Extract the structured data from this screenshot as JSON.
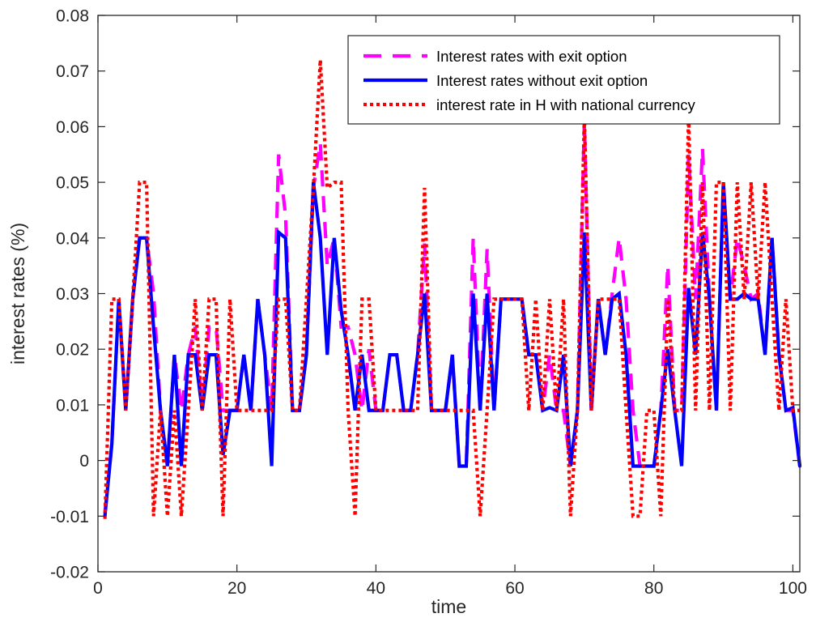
{
  "chart_data": {
    "type": "line",
    "title": "",
    "xlabel": "time",
    "ylabel": "interest rates (%)",
    "xlim": [
      0,
      101
    ],
    "ylim": [
      -0.02,
      0.08
    ],
    "xticks": [
      0,
      20,
      40,
      60,
      80,
      100
    ],
    "xtick_labels": [
      "0",
      "20",
      "40",
      "60",
      "80",
      "100"
    ],
    "yticks": [
      -0.02,
      -0.01,
      0,
      0.01,
      0.02,
      0.03,
      0.04,
      0.05,
      0.06,
      0.07,
      0.08
    ],
    "ytick_labels": [
      "-0.02",
      "-0.01",
      "0",
      "0.01",
      "0.02",
      "0.03",
      "0.04",
      "0.05",
      "0.06",
      "0.07",
      "0.08"
    ],
    "grid": false,
    "legend_position": "top-right",
    "series": [
      {
        "name": "Interest rates with exit option",
        "color": "#ff00ff",
        "style": "dashed",
        "x": [
          1,
          2,
          3,
          4,
          5,
          6,
          7,
          8,
          9,
          10,
          11,
          12,
          13,
          14,
          15,
          16,
          17,
          18,
          19,
          20,
          21,
          22,
          23,
          24,
          25,
          26,
          27,
          28,
          29,
          30,
          31,
          32,
          33,
          34,
          35,
          36,
          37,
          38,
          39,
          40,
          41,
          42,
          43,
          44,
          45,
          46,
          47,
          48,
          49,
          50,
          51,
          52,
          53,
          54,
          55,
          56,
          57,
          58,
          59,
          60,
          61,
          62,
          63,
          64,
          65,
          66,
          67,
          68,
          69,
          70,
          71,
          72,
          73,
          74,
          75,
          76,
          77,
          78,
          79,
          80,
          81,
          82,
          83,
          84,
          85,
          86,
          87,
          88,
          89,
          90,
          91,
          92,
          93,
          94,
          95,
          96,
          97,
          98,
          99,
          100,
          101
        ],
        "y": [
          -0.0095,
          0.003,
          0.029,
          0.009,
          0.029,
          0.04,
          0.04,
          0.03,
          0.009,
          -0.001,
          0.019,
          0.009,
          0.019,
          0.024,
          0.009,
          0.024,
          0.024,
          0.009,
          0.009,
          0.009,
          0.019,
          0.009,
          0.029,
          0.019,
          0.009,
          0.055,
          0.044,
          0.009,
          0.009,
          0.019,
          0.049,
          0.057,
          0.035,
          0.04,
          0.024,
          0.024,
          0.019,
          0.009,
          0.02,
          0.009,
          0.009,
          0.019,
          0.019,
          0.009,
          0.009,
          0.019,
          0.039,
          0.009,
          0.009,
          0.009,
          0.019,
          -0.001,
          -0.001,
          0.04,
          0.009,
          0.038,
          0.009,
          0.029,
          0.029,
          0.029,
          0.029,
          0.019,
          0.019,
          0.009,
          0.019,
          0.009,
          0.009,
          -0.001,
          0.009,
          0.061,
          0.009,
          0.029,
          0.019,
          0.03,
          0.04,
          0.029,
          0.009,
          -0.001,
          -0.001,
          -0.001,
          0.009,
          0.035,
          0.009,
          0.009,
          0.055,
          0.029,
          0.056,
          0.029,
          0.009,
          0.05,
          0.029,
          0.04,
          0.035,
          0.029,
          0.03,
          0.019,
          0.04,
          0.019,
          0.009,
          0.009,
          -0.001
        ]
      },
      {
        "name": "Interest rates without exit option",
        "color": "#0000ff",
        "style": "solid",
        "x": [
          1,
          2,
          3,
          4,
          5,
          6,
          7,
          8,
          9,
          10,
          11,
          12,
          13,
          14,
          15,
          16,
          17,
          18,
          19,
          20,
          21,
          22,
          23,
          24,
          25,
          26,
          27,
          28,
          29,
          30,
          31,
          32,
          33,
          34,
          35,
          36,
          37,
          38,
          39,
          40,
          41,
          42,
          43,
          44,
          45,
          46,
          47,
          48,
          49,
          50,
          51,
          52,
          53,
          54,
          55,
          56,
          57,
          58,
          59,
          60,
          61,
          62,
          63,
          64,
          65,
          66,
          67,
          68,
          69,
          70,
          71,
          72,
          73,
          74,
          75,
          76,
          77,
          78,
          79,
          80,
          81,
          82,
          83,
          84,
          85,
          86,
          87,
          88,
          89,
          90,
          91,
          92,
          93,
          94,
          95,
          96,
          97,
          98,
          99,
          100,
          101
        ],
        "y": [
          -0.01,
          0.003,
          0.029,
          0.009,
          0.029,
          0.04,
          0.04,
          0.024,
          0.009,
          -0.001,
          0.019,
          -0.001,
          0.019,
          0.019,
          0.009,
          0.019,
          0.019,
          0.001,
          0.009,
          0.009,
          0.019,
          0.009,
          0.029,
          0.019,
          -0.001,
          0.041,
          0.04,
          0.009,
          0.009,
          0.019,
          0.05,
          0.04,
          0.019,
          0.04,
          0.027,
          0.019,
          0.009,
          0.019,
          0.009,
          0.009,
          0.009,
          0.019,
          0.019,
          0.009,
          0.009,
          0.019,
          0.03,
          0.009,
          0.009,
          0.009,
          0.019,
          -0.001,
          -0.001,
          0.03,
          0.009,
          0.03,
          0.009,
          0.029,
          0.029,
          0.029,
          0.029,
          0.019,
          0.019,
          0.009,
          0.0095,
          0.009,
          0.019,
          -0.001,
          0.009,
          0.041,
          0.009,
          0.029,
          0.019,
          0.029,
          0.03,
          0.019,
          -0.001,
          -0.001,
          -0.001,
          -0.001,
          0.009,
          0.02,
          0.009,
          -0.001,
          0.031,
          0.019,
          0.041,
          0.029,
          0.009,
          0.05,
          0.029,
          0.029,
          0.03,
          0.029,
          0.029,
          0.019,
          0.04,
          0.019,
          0.009,
          0.0095,
          -0.001
        ]
      },
      {
        "name": "interest rate in H with national currency",
        "color": "#ff0000",
        "style": "dotted",
        "x": [
          1,
          2,
          3,
          4,
          5,
          6,
          7,
          8,
          9,
          10,
          11,
          12,
          13,
          14,
          15,
          16,
          17,
          18,
          19,
          20,
          21,
          22,
          23,
          24,
          25,
          26,
          27,
          28,
          29,
          30,
          31,
          32,
          33,
          34,
          35,
          36,
          37,
          38,
          39,
          40,
          41,
          42,
          43,
          44,
          45,
          46,
          47,
          48,
          49,
          50,
          51,
          52,
          53,
          54,
          55,
          56,
          57,
          58,
          59,
          60,
          61,
          62,
          63,
          64,
          65,
          66,
          67,
          68,
          69,
          70,
          71,
          72,
          73,
          74,
          75,
          76,
          77,
          78,
          79,
          80,
          81,
          82,
          83,
          84,
          85,
          86,
          87,
          88,
          89,
          90,
          91,
          92,
          93,
          94,
          95,
          96,
          97,
          98,
          99,
          100,
          101
        ],
        "y": [
          -0.0105,
          0.029,
          0.029,
          0.009,
          0.029,
          0.05,
          0.05,
          -0.01,
          0.009,
          -0.01,
          0.009,
          -0.01,
          0.009,
          0.029,
          0.009,
          0.029,
          0.029,
          -0.01,
          0.029,
          0.009,
          0.009,
          0.009,
          0.009,
          0.009,
          0.009,
          0.029,
          0.029,
          0.009,
          0.009,
          0.029,
          0.049,
          0.072,
          0.049,
          0.05,
          0.05,
          0.009,
          -0.01,
          0.029,
          0.029,
          0.009,
          0.009,
          0.009,
          0.009,
          0.009,
          0.009,
          0.009,
          0.049,
          0.009,
          0.009,
          0.009,
          0.009,
          0.009,
          0.009,
          0.009,
          -0.01,
          0.009,
          0.029,
          0.029,
          0.029,
          0.029,
          0.029,
          0.009,
          0.029,
          0.009,
          0.029,
          0.009,
          0.029,
          -0.01,
          0.009,
          0.062,
          0.009,
          0.029,
          0.029,
          0.029,
          0.029,
          0.009,
          -0.01,
          -0.01,
          0.009,
          0.009,
          -0.01,
          0.029,
          0.009,
          0.009,
          0.062,
          0.009,
          0.05,
          0.009,
          0.05,
          0.05,
          0.009,
          0.05,
          0.029,
          0.05,
          0.029,
          0.05,
          0.029,
          0.009,
          0.029,
          0.009,
          0.009
        ]
      }
    ]
  }
}
